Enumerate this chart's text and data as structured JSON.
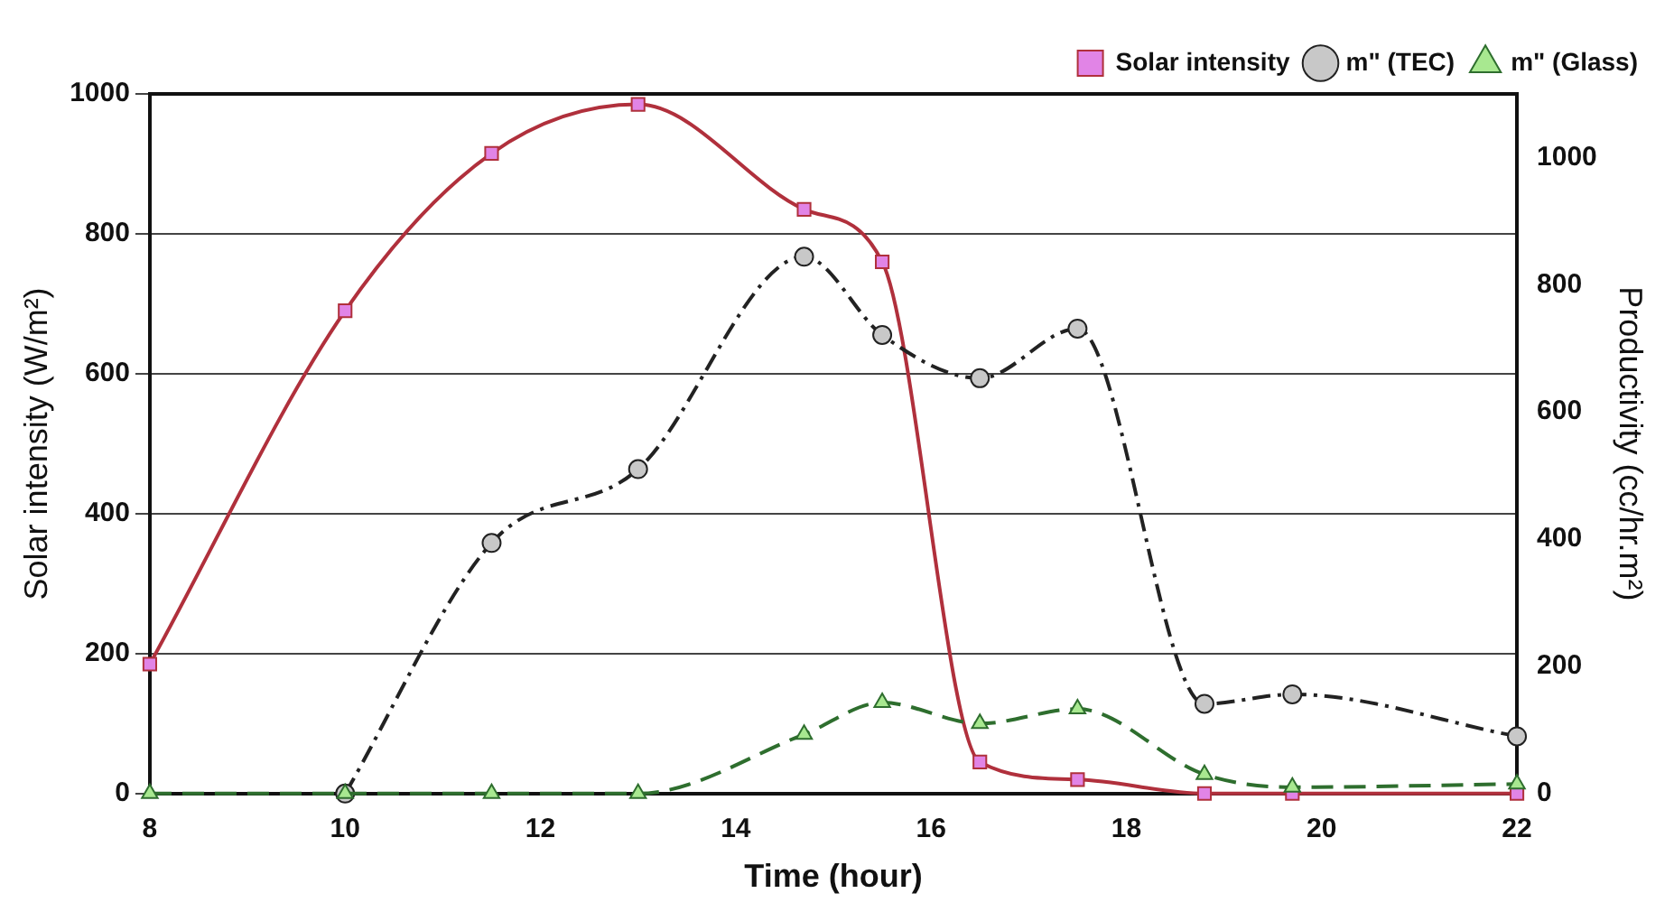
{
  "chart_data": {
    "type": "line",
    "xlabel": "Time (hour)",
    "ylabel": "Solar intensity (W/m²)",
    "y2label": "Productivity (cc/hr.m²)",
    "xlim": [
      8,
      22
    ],
    "xticks": [
      8,
      10,
      12,
      14,
      16,
      18,
      20,
      22
    ],
    "ylim": [
      0,
      1000
    ],
    "yticks": [
      0,
      200,
      400,
      600,
      800,
      1000
    ],
    "y2lim": [
      0,
      1100
    ],
    "y2ticks": [
      0,
      200,
      400,
      600,
      800,
      1000
    ],
    "grid": "y",
    "legend": "top right",
    "series": [
      {
        "name": "Solar intensity",
        "color": "#b0303c",
        "marker": "square",
        "line_style": "solid",
        "x": [
          8,
          10,
          11.5,
          13,
          14.7,
          15.5,
          16.5,
          17.5,
          18.8,
          19.7,
          22
        ],
        "values": [
          185,
          690,
          915,
          985,
          835,
          760,
          45,
          20,
          0,
          0,
          0
        ]
      },
      {
        "name": "m\" (TEC)",
        "color": "#222222",
        "marker": "circle",
        "line_style": "dashdot",
        "axis": "y2",
        "x": [
          10,
          11.5,
          13,
          14.7,
          15.5,
          16.5,
          17.5,
          18.8,
          19.7,
          22
        ],
        "values": [
          0,
          394,
          510,
          844,
          721,
          653,
          731,
          141,
          156,
          90
        ]
      },
      {
        "name": "m\" (Glass)",
        "color": "#2e6e2e",
        "marker": "triangle",
        "line_style": "dashed",
        "axis": "y2",
        "x": [
          8,
          10,
          11.5,
          13,
          14.7,
          15.5,
          16.5,
          17.5,
          18.8,
          19.7,
          22
        ],
        "values": [
          0,
          0,
          0,
          0,
          93,
          143,
          110,
          133,
          30,
          10,
          15
        ]
      }
    ]
  }
}
